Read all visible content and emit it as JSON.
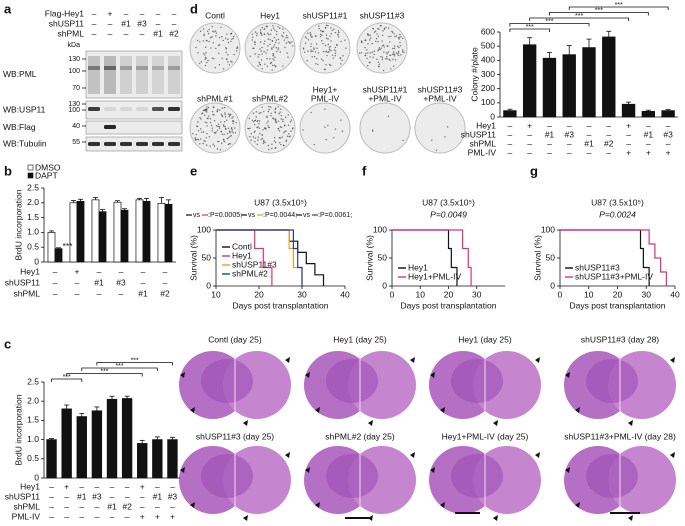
{
  "blot": {
    "panel": "a",
    "kda": "kDa",
    "rows": [
      {
        "label": "Flag-Hey1",
        "marks": [
          "–",
          "+",
          "–",
          "–",
          "–",
          "–"
        ]
      },
      {
        "label": "shUSP11",
        "marks": [
          "–",
          "–",
          "#1",
          "#3",
          "–",
          "–"
        ]
      },
      {
        "label": "shPML",
        "marks": [
          "–",
          "–",
          "–",
          "–",
          "#1",
          "#2"
        ]
      }
    ],
    "blots": [
      {
        "label": "WB:PML",
        "markers": [
          "130",
          "100",
          "70"
        ]
      },
      {
        "label": "WB:USP11",
        "markers": [
          "130",
          "100"
        ]
      },
      {
        "label": "WB:Flag",
        "markers": [
          "40"
        ]
      },
      {
        "label": "WB:Tubulin",
        "markers": [
          "55"
        ]
      }
    ]
  },
  "plates": {
    "panel": "d",
    "labels": [
      [
        "Contl"
      ],
      [
        "Hey1"
      ],
      [
        "shUSP11#1"
      ],
      [
        "shUSP11#3"
      ],
      [
        "shPML#1"
      ],
      [
        "shPML#2"
      ],
      [
        "Hey1+",
        "PML-IV"
      ],
      [
        "shUSP11#1",
        "+PML-IV"
      ],
      [
        "shUSP11#3",
        "+PML-IV"
      ]
    ]
  },
  "histology": {
    "labels": [
      "Contl (day 25)",
      "Hey1 (day 25)",
      "Hey1 (day 25)",
      "shUSP11#3 (day 28)",
      "shUSP11#3 (day 25)",
      "shPML#2 (day 25)",
      "Hey1+PML-IV (day 25)",
      "shUSP11#3+PML-IV (day 28)"
    ]
  },
  "chart_data": [
    {
      "type": "bar",
      "panel": "b",
      "y_label": "BrdU incorporation",
      "ylim": [
        0,
        2.5
      ],
      "yticks": [
        0,
        0.5,
        {
          "value": 1,
          "label": "1.0"
        },
        1.5,
        {
          "value": 2,
          "label": "2.0"
        },
        2.5
      ],
      "series": [
        {
          "name": "DMSO",
          "color": "#ffffff",
          "values": [
            1.0,
            2.0,
            2.1,
            2.02,
            2.1,
            1.98
          ],
          "errors": [
            0.05,
            0.08,
            0.08,
            0.05,
            0.05,
            0.2
          ]
        },
        {
          "name": "DAPT",
          "color": "#111111",
          "values": [
            0.45,
            2.05,
            1.7,
            1.75,
            2.05,
            1.95
          ],
          "errors": [
            0.03,
            0.07,
            0.07,
            0.05,
            0.1,
            0.15
          ]
        }
      ],
      "conditions": [
        {
          "label": "Hey1",
          "marks": [
            "–",
            "+",
            "–",
            "–",
            "–",
            "–"
          ]
        },
        {
          "label": "shUSP11",
          "marks": [
            "–",
            "–",
            "#1",
            "#3",
            "–",
            "–"
          ]
        },
        {
          "label": "shPML",
          "marks": [
            "–",
            "–",
            "–",
            "–",
            "#1",
            "#2"
          ]
        }
      ],
      "significance": [
        "***"
      ]
    },
    {
      "type": "bar",
      "panel": "c",
      "y_label": "BrdU incorporation",
      "color": "#111111",
      "ylim": [
        0,
        2.5
      ],
      "yticks": [
        0,
        0.5,
        {
          "value": 1,
          "label": "1.0"
        },
        1.5,
        {
          "value": 2,
          "label": "2.0"
        },
        2.5
      ],
      "values": [
        1.0,
        1.8,
        1.6,
        1.75,
        2.05,
        2.07,
        0.9,
        1.0,
        1.0
      ],
      "errors": [
        0.03,
        0.1,
        0.08,
        0.1,
        0.08,
        0.06,
        0.08,
        0.07,
        0.06
      ],
      "conditions": [
        {
          "label": "Hey1",
          "marks": [
            "–",
            "+",
            "–",
            "–",
            "–",
            "–",
            "+",
            "–",
            "–"
          ]
        },
        {
          "label": "shUSP11",
          "marks": [
            "–",
            "–",
            "#1",
            "#3",
            "–",
            "–",
            "–",
            "#1",
            "#3"
          ]
        },
        {
          "label": "shPML",
          "marks": [
            "–",
            "–",
            "–",
            "–",
            "#1",
            "#2",
            "–",
            "–",
            "–"
          ]
        },
        {
          "label": "PML-IV",
          "marks": [
            "–",
            "–",
            "–",
            "–",
            "–",
            "–",
            "+",
            "+",
            "+"
          ]
        }
      ],
      "significance": [
        "***",
        "***",
        "***",
        "***"
      ]
    },
    {
      "type": "bar",
      "panel": "d",
      "y_label": "Colony #/plate",
      "color": "#111111",
      "ylim": [
        0,
        600
      ],
      "yticks": [
        0,
        100,
        200,
        300,
        400,
        500,
        600
      ],
      "values": [
        45,
        510,
        415,
        440,
        490,
        565,
        90,
        40,
        45
      ],
      "errors": [
        10,
        50,
        40,
        65,
        60,
        40,
        15,
        8,
        8
      ],
      "conditions": [
        {
          "label": "Hey1",
          "marks": [
            "–",
            "+",
            "–",
            "–",
            "–",
            "–",
            "+",
            "–",
            "–"
          ]
        },
        {
          "label": "shUSP11",
          "marks": [
            "–",
            "–",
            "#1",
            "#3",
            "–",
            "–",
            "–",
            "#1",
            "#3"
          ]
        },
        {
          "label": "shPML",
          "marks": [
            "–",
            "–",
            "–",
            "–",
            "#1",
            "#2",
            "–",
            "–",
            "–"
          ]
        },
        {
          "label": "PML-IV",
          "marks": [
            "–",
            "–",
            "–",
            "–",
            "–",
            "–",
            "+",
            "+",
            "+"
          ]
        }
      ],
      "significance": [
        "***",
        "***",
        "***",
        "***",
        "***"
      ]
    },
    {
      "type": "line",
      "panel": "e",
      "title": "U87 (3.5x10⁵)",
      "comparisons": [
        {
          "vs": "vs",
          "p": ":P=0.0005;"
        },
        {
          "vs": "vs",
          "p": ":P=0.0044;"
        },
        {
          "vs": "vs",
          "p": ":P=0.0061;"
        }
      ],
      "x_label": "Days post transplantation",
      "y_label": "Survival (%)",
      "xlim": [
        10,
        40
      ],
      "xticks": [
        10,
        20,
        30,
        40
      ],
      "ylim": [
        0,
        100
      ],
      "yticks": [
        0,
        50,
        100
      ],
      "series": [
        {
          "name": "Contl",
          "color": "#111111",
          "x": [
            10,
            27,
            27,
            29,
            29,
            31,
            31,
            33,
            33,
            35,
            35
          ],
          "values": [
            100,
            100,
            80,
            80,
            60,
            60,
            40,
            40,
            20,
            20,
            0
          ]
        },
        {
          "name": "Hey1",
          "color": "#e0307a",
          "x": [
            10,
            19,
            19,
            21,
            21,
            23,
            23
          ],
          "values": [
            100,
            100,
            67,
            67,
            33,
            33,
            0
          ]
        },
        {
          "name": "shUSP11#3",
          "color": "#f0a020",
          "x": [
            10,
            27,
            27,
            28,
            28,
            30,
            30
          ],
          "values": [
            100,
            100,
            67,
            67,
            33,
            33,
            0
          ]
        },
        {
          "name": "shPML#2",
          "color": "#1f3fa0",
          "x": [
            10,
            28,
            28,
            29,
            29,
            30,
            30
          ],
          "values": [
            100,
            100,
            67,
            67,
            33,
            33,
            0
          ]
        }
      ]
    },
    {
      "type": "line",
      "panel": "f",
      "title": "U87 (3.5x10⁵)",
      "subtitle": "P=0.0049",
      "x_label": "Days post transplantation",
      "y_label": "Survival (%)",
      "xlim": [
        0,
        40
      ],
      "xticks": [
        0,
        10,
        20,
        30
      ],
      "ylim": [
        0,
        100
      ],
      "yticks": [
        0,
        50,
        100
      ],
      "series": [
        {
          "name": "Hey1",
          "color": "#111111",
          "x": [
            0,
            20,
            20,
            21,
            21,
            23,
            23
          ],
          "values": [
            100,
            100,
            67,
            67,
            33,
            33,
            0
          ]
        },
        {
          "name": "Hey1+PML-IV",
          "color": "#e0307a",
          "x": [
            0,
            25,
            25,
            27,
            27,
            28,
            28
          ],
          "values": [
            100,
            100,
            67,
            67,
            33,
            33,
            0
          ]
        }
      ]
    },
    {
      "type": "line",
      "panel": "g",
      "title": "U87 (3.5x10⁵)",
      "subtitle": "P=0.0024",
      "x_label": "Days post transplantation",
      "y_label": "Survival (%)",
      "xlim": [
        0,
        40
      ],
      "xticks": [
        0,
        10,
        20,
        30,
        40
      ],
      "ylim": [
        0,
        100
      ],
      "yticks": [
        0,
        50,
        100
      ],
      "series": [
        {
          "name": "shUSP11#3",
          "color": "#111111",
          "x": [
            0,
            28,
            28,
            29,
            29,
            31,
            31
          ],
          "values": [
            100,
            100,
            67,
            67,
            33,
            33,
            0
          ]
        },
        {
          "name": "shUSP11#3+PML-IV",
          "color": "#e0307a",
          "x": [
            0,
            31,
            31,
            33,
            33,
            35,
            35,
            37,
            37
          ],
          "values": [
            100,
            100,
            75,
            75,
            50,
            50,
            25,
            25,
            0
          ]
        }
      ]
    }
  ]
}
